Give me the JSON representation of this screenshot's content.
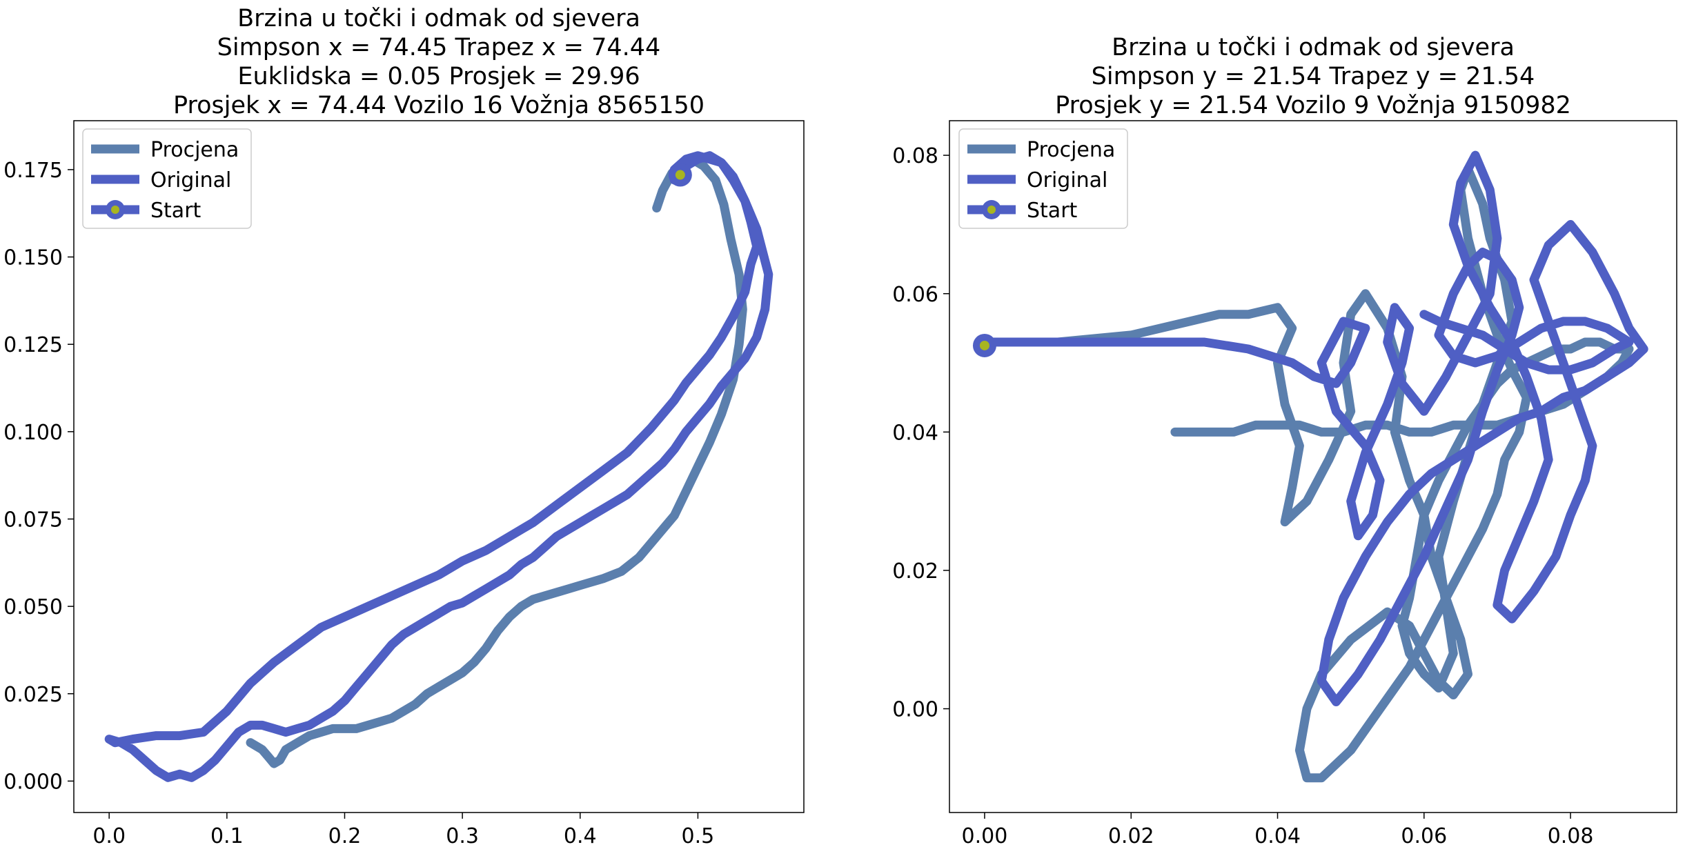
{
  "colors": {
    "procjena": "#5b7fad",
    "original": "#4f5fc4",
    "start_marker_center": "#a8b520",
    "axes_frame": "#000000",
    "background": "#ffffff"
  },
  "chart_data": [
    {
      "type": "line",
      "title_lines": [
        "Brzina u točki i odmak od sjevera",
        "Simpson x = 74.45 Trapez x = 74.44",
        "Euklidska = 0.05 Prosjek = 29.96",
        "Prosjek x = 74.44 Vozilo 16 Vožnja 8565150"
      ],
      "xlim": [
        -0.03,
        0.59
      ],
      "ylim": [
        -0.009,
        0.189
      ],
      "x_ticks": [
        0.0,
        0.1,
        0.2,
        0.3,
        0.4,
        0.5
      ],
      "x_tick_labels": [
        "0.0",
        "0.1",
        "0.2",
        "0.3",
        "0.4",
        "0.5"
      ],
      "y_ticks": [
        0.0,
        0.025,
        0.05,
        0.075,
        0.1,
        0.125,
        0.15,
        0.175
      ],
      "y_tick_labels": [
        "0.000",
        "0.025",
        "0.050",
        "0.075",
        "0.100",
        "0.125",
        "0.150",
        "0.175"
      ],
      "legend": {
        "placement": "upper-left",
        "entries": [
          "Procjena",
          "Original",
          "Start"
        ]
      },
      "grid": false,
      "series": [
        {
          "name": "Procjena",
          "x": [
            0.465,
            0.47,
            0.478,
            0.487,
            0.495,
            0.505,
            0.515,
            0.522,
            0.528,
            0.535,
            0.538,
            0.535,
            0.53,
            0.52,
            0.51,
            0.5,
            0.49,
            0.48,
            0.465,
            0.45,
            0.435,
            0.42,
            0.41,
            0.4,
            0.39,
            0.38,
            0.37,
            0.36,
            0.35,
            0.34,
            0.33,
            0.32,
            0.31,
            0.3,
            0.29,
            0.28,
            0.27,
            0.26,
            0.25,
            0.24,
            0.23,
            0.22,
            0.21,
            0.2,
            0.19,
            0.18,
            0.17,
            0.16,
            0.15,
            0.145,
            0.14,
            0.135,
            0.13,
            0.12
          ],
          "y": [
            0.164,
            0.169,
            0.174,
            0.177,
            0.178,
            0.176,
            0.172,
            0.165,
            0.155,
            0.145,
            0.135,
            0.125,
            0.115,
            0.105,
            0.097,
            0.09,
            0.083,
            0.076,
            0.07,
            0.064,
            0.06,
            0.058,
            0.057,
            0.056,
            0.055,
            0.054,
            0.053,
            0.052,
            0.05,
            0.047,
            0.043,
            0.038,
            0.034,
            0.031,
            0.029,
            0.027,
            0.025,
            0.022,
            0.02,
            0.018,
            0.017,
            0.016,
            0.015,
            0.015,
            0.015,
            0.014,
            0.013,
            0.011,
            0.009,
            0.006,
            0.005,
            0.007,
            0.009,
            0.011
          ]
        },
        {
          "name": "Original",
          "x": [
            0.48,
            0.49,
            0.5,
            0.51,
            0.52,
            0.53,
            0.54,
            0.55,
            0.56,
            0.557,
            0.55,
            0.54,
            0.53,
            0.52,
            0.51,
            0.5,
            0.49,
            0.48,
            0.47,
            0.46,
            0.45,
            0.44,
            0.43,
            0.42,
            0.41,
            0.4,
            0.39,
            0.38,
            0.37,
            0.36,
            0.35,
            0.34,
            0.33,
            0.32,
            0.31,
            0.3,
            0.29,
            0.28,
            0.27,
            0.26,
            0.25,
            0.24,
            0.23,
            0.22,
            0.21,
            0.2,
            0.19,
            0.18,
            0.17,
            0.16,
            0.15,
            0.14,
            0.13,
            0.12,
            0.11,
            0.1,
            0.09,
            0.08,
            0.07,
            0.06,
            0.05,
            0.04,
            0.03,
            0.02,
            0.01,
            0.0,
            0.005,
            0.02,
            0.04,
            0.06,
            0.08,
            0.1,
            0.12,
            0.14,
            0.16,
            0.18,
            0.2,
            0.22,
            0.24,
            0.26,
            0.28,
            0.3,
            0.32,
            0.34,
            0.36,
            0.38,
            0.4,
            0.42,
            0.44,
            0.46,
            0.48,
            0.49,
            0.5,
            0.51,
            0.52,
            0.53,
            0.54,
            0.545,
            0.55,
            0.545,
            0.54,
            0.53,
            0.52,
            0.51,
            0.5,
            0.49,
            0.48
          ],
          "y": [
            0.175,
            0.178,
            0.179,
            0.178,
            0.177,
            0.173,
            0.166,
            0.158,
            0.145,
            0.135,
            0.127,
            0.121,
            0.117,
            0.113,
            0.108,
            0.104,
            0.1,
            0.095,
            0.091,
            0.088,
            0.085,
            0.082,
            0.08,
            0.078,
            0.076,
            0.074,
            0.072,
            0.07,
            0.067,
            0.064,
            0.062,
            0.059,
            0.057,
            0.055,
            0.053,
            0.051,
            0.05,
            0.048,
            0.046,
            0.044,
            0.042,
            0.039,
            0.035,
            0.031,
            0.027,
            0.023,
            0.02,
            0.018,
            0.016,
            0.015,
            0.014,
            0.015,
            0.016,
            0.016,
            0.014,
            0.01,
            0.006,
            0.003,
            0.001,
            0.002,
            0.001,
            0.003,
            0.006,
            0.009,
            0.011,
            0.012,
            0.011,
            0.012,
            0.013,
            0.013,
            0.014,
            0.02,
            0.028,
            0.034,
            0.039,
            0.044,
            0.047,
            0.05,
            0.053,
            0.056,
            0.059,
            0.063,
            0.066,
            0.07,
            0.074,
            0.079,
            0.084,
            0.089,
            0.094,
            0.101,
            0.109,
            0.114,
            0.118,
            0.122,
            0.127,
            0.133,
            0.14,
            0.148,
            0.153,
            0.16,
            0.166,
            0.172,
            0.177,
            0.179,
            0.178,
            0.176,
            0.172
          ]
        }
      ],
      "start": {
        "name": "Start",
        "x": 0.485,
        "y": 0.1735
      }
    },
    {
      "type": "line",
      "title_lines": [
        "Brzina u točki i odmak od sjevera",
        "Simpson y = 21.54 Trapez y = 21.54",
        "Prosjek y = 21.54 Vozilo 9 Vožnja 9150982"
      ],
      "xlim": [
        -0.0048,
        0.0945
      ],
      "ylim": [
        -0.015,
        0.085
      ],
      "x_ticks": [
        0.0,
        0.02,
        0.04,
        0.06,
        0.08
      ],
      "x_tick_labels": [
        "0.00",
        "0.02",
        "0.04",
        "0.06",
        "0.08"
      ],
      "y_ticks": [
        0.0,
        0.02,
        0.04,
        0.06,
        0.08
      ],
      "y_tick_labels": [
        "0.00",
        "0.02",
        "0.04",
        "0.06",
        "0.08"
      ],
      "legend": {
        "placement": "upper-left",
        "entries": [
          "Procjena",
          "Original",
          "Start"
        ]
      },
      "grid": false,
      "series": [
        {
          "name": "Procjena",
          "x": [
            0.0,
            0.01,
            0.02,
            0.028,
            0.032,
            0.036,
            0.04,
            0.042,
            0.04,
            0.041,
            0.043,
            0.042,
            0.041,
            0.044,
            0.047,
            0.05,
            0.049,
            0.05,
            0.052,
            0.055,
            0.057,
            0.056,
            0.058,
            0.06,
            0.059,
            0.058,
            0.057,
            0.058,
            0.06,
            0.062,
            0.064,
            0.063,
            0.062,
            0.064,
            0.066,
            0.068,
            0.07,
            0.072,
            0.071,
            0.069,
            0.068,
            0.066,
            0.065,
            0.066,
            0.068,
            0.07,
            0.072,
            0.074,
            0.073,
            0.071,
            0.07,
            0.068,
            0.066,
            0.064,
            0.062,
            0.06,
            0.058,
            0.056,
            0.054,
            0.052,
            0.05,
            0.048,
            0.046,
            0.044,
            0.043,
            0.044,
            0.046,
            0.05,
            0.055,
            0.058,
            0.06,
            0.062,
            0.064,
            0.066,
            0.065,
            0.063,
            0.061,
            0.06,
            0.062,
            0.064,
            0.066,
            0.068,
            0.07,
            0.072,
            0.074,
            0.076,
            0.078,
            0.08,
            0.082,
            0.084,
            0.086,
            0.088,
            0.087,
            0.085,
            0.082,
            0.079,
            0.076,
            0.073,
            0.07,
            0.067,
            0.064,
            0.061,
            0.058,
            0.055,
            0.052,
            0.049,
            0.046,
            0.043,
            0.04,
            0.037,
            0.034,
            0.031,
            0.028,
            0.026
          ],
          "y": [
            0.053,
            0.053,
            0.054,
            0.056,
            0.057,
            0.057,
            0.058,
            0.055,
            0.05,
            0.044,
            0.038,
            0.032,
            0.027,
            0.03,
            0.036,
            0.043,
            0.05,
            0.057,
            0.06,
            0.055,
            0.048,
            0.04,
            0.033,
            0.028,
            0.022,
            0.016,
            0.012,
            0.008,
            0.005,
            0.003,
            0.008,
            0.015,
            0.022,
            0.03,
            0.037,
            0.044,
            0.05,
            0.056,
            0.062,
            0.068,
            0.073,
            0.078,
            0.075,
            0.068,
            0.06,
            0.054,
            0.049,
            0.045,
            0.04,
            0.036,
            0.031,
            0.026,
            0.022,
            0.018,
            0.014,
            0.01,
            0.006,
            0.003,
            0.0,
            -0.003,
            -0.006,
            -0.008,
            -0.01,
            -0.01,
            -0.006,
            0.0,
            0.005,
            0.01,
            0.014,
            0.012,
            0.008,
            0.004,
            0.002,
            0.005,
            0.01,
            0.016,
            0.022,
            0.028,
            0.033,
            0.037,
            0.041,
            0.044,
            0.047,
            0.049,
            0.05,
            0.051,
            0.052,
            0.052,
            0.053,
            0.053,
            0.052,
            0.052,
            0.05,
            0.048,
            0.046,
            0.044,
            0.043,
            0.042,
            0.041,
            0.041,
            0.041,
            0.04,
            0.04,
            0.041,
            0.041,
            0.04,
            0.04,
            0.041,
            0.041,
            0.041,
            0.04,
            0.04,
            0.04,
            0.04
          ]
        },
        {
          "name": "Original",
          "x": [
            0.0,
            0.01,
            0.02,
            0.03,
            0.036,
            0.042,
            0.045,
            0.048,
            0.05,
            0.052,
            0.049,
            0.046,
            0.048,
            0.052,
            0.054,
            0.053,
            0.051,
            0.05,
            0.052,
            0.055,
            0.057,
            0.058,
            0.056,
            0.055,
            0.057,
            0.06,
            0.063,
            0.066,
            0.069,
            0.07,
            0.069,
            0.067,
            0.065,
            0.064,
            0.066,
            0.069,
            0.072,
            0.074,
            0.076,
            0.077,
            0.075,
            0.073,
            0.071,
            0.07,
            0.072,
            0.075,
            0.078,
            0.08,
            0.082,
            0.083,
            0.081,
            0.079,
            0.077,
            0.075,
            0.077,
            0.08,
            0.083,
            0.086,
            0.088,
            0.09,
            0.088,
            0.085,
            0.082,
            0.079,
            0.076,
            0.073,
            0.07,
            0.067,
            0.064,
            0.061,
            0.058,
            0.055,
            0.052,
            0.049,
            0.047,
            0.046,
            0.048,
            0.051,
            0.054,
            0.057,
            0.06,
            0.063,
            0.066,
            0.068,
            0.07,
            0.072,
            0.073,
            0.072,
            0.07,
            0.068,
            0.066,
            0.064,
            0.062,
            0.064,
            0.067,
            0.07,
            0.073,
            0.076,
            0.079,
            0.082,
            0.085,
            0.088,
            0.086,
            0.083,
            0.08,
            0.077,
            0.074,
            0.071,
            0.068,
            0.065,
            0.062,
            0.06
          ],
          "y": [
            0.053,
            0.053,
            0.053,
            0.053,
            0.052,
            0.05,
            0.048,
            0.047,
            0.05,
            0.055,
            0.056,
            0.05,
            0.043,
            0.038,
            0.033,
            0.028,
            0.025,
            0.03,
            0.037,
            0.044,
            0.05,
            0.055,
            0.058,
            0.053,
            0.047,
            0.043,
            0.048,
            0.054,
            0.06,
            0.068,
            0.075,
            0.08,
            0.076,
            0.07,
            0.064,
            0.058,
            0.053,
            0.048,
            0.042,
            0.036,
            0.03,
            0.025,
            0.02,
            0.015,
            0.013,
            0.017,
            0.022,
            0.028,
            0.033,
            0.038,
            0.044,
            0.05,
            0.056,
            0.062,
            0.067,
            0.07,
            0.066,
            0.06,
            0.055,
            0.052,
            0.05,
            0.048,
            0.046,
            0.045,
            0.043,
            0.042,
            0.04,
            0.038,
            0.036,
            0.034,
            0.031,
            0.027,
            0.022,
            0.016,
            0.01,
            0.004,
            0.001,
            0.005,
            0.01,
            0.016,
            0.022,
            0.029,
            0.036,
            0.043,
            0.049,
            0.054,
            0.058,
            0.062,
            0.065,
            0.066,
            0.064,
            0.06,
            0.054,
            0.051,
            0.05,
            0.051,
            0.053,
            0.055,
            0.056,
            0.056,
            0.055,
            0.053,
            0.052,
            0.05,
            0.049,
            0.049,
            0.05,
            0.052,
            0.054,
            0.055,
            0.056,
            0.057
          ]
        }
      ],
      "start": {
        "name": "Start",
        "x": 0.0,
        "y": 0.0525
      }
    }
  ]
}
